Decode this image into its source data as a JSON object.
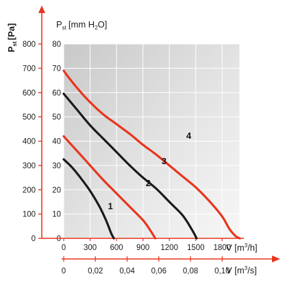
{
  "chart_data": {
    "type": "line",
    "title": "",
    "y_axis_left": {
      "label_main": "P",
      "label_sub": "st",
      "label_unit": "[Pa]",
      "ticks": [
        0,
        100,
        200,
        300,
        400,
        500,
        600,
        700,
        800
      ],
      "range": [
        0,
        800
      ]
    },
    "y_axis_inner": {
      "label_main": "P",
      "label_sub": "st",
      "label_unit": "[mm H",
      "label_unit_sub": "2",
      "label_unit_end": "O]",
      "ticks": [
        0,
        10,
        20,
        30,
        40,
        50,
        60,
        70,
        80
      ],
      "range": [
        0,
        80
      ]
    },
    "x_axis_primary": {
      "label": "V [m",
      "label_sup": "3",
      "label_end": "/h]",
      "ticks": [
        0,
        300,
        600,
        900,
        1200,
        1500,
        1800
      ],
      "range": [
        0,
        2000
      ]
    },
    "x_axis_secondary": {
      "label": "V [m",
      "label_sup": "3",
      "label_end": "/s]",
      "ticks": [
        "0",
        "0,02",
        "0,04",
        "0,06",
        "0,08",
        "0,10"
      ],
      "tick_values": [
        0,
        0.02,
        0.04,
        0.06,
        0.08,
        0.1
      ],
      "range": [
        0,
        0.1111
      ]
    },
    "grid": true,
    "series": [
      {
        "name": "1",
        "color": "#1a1a1a",
        "x": [
          0,
          100,
          200,
          300,
          400,
          480,
          540,
          570
        ],
        "y": [
          325,
          290,
          245,
          195,
          135,
          75,
          20,
          0
        ]
      },
      {
        "name": "2",
        "color": "#e8351e",
        "x": [
          0,
          150,
          300,
          450,
          600,
          750,
          900,
          980,
          1040
        ],
        "y": [
          420,
          360,
          300,
          240,
          185,
          130,
          75,
          35,
          0
        ]
      },
      {
        "name": "3",
        "color": "#1a1a1a",
        "x": [
          0,
          150,
          300,
          450,
          600,
          750,
          900,
          1050,
          1200,
          1350,
          1450,
          1510
        ],
        "y": [
          595,
          530,
          465,
          410,
          355,
          300,
          250,
          205,
          150,
          95,
          40,
          0
        ]
      },
      {
        "name": "4",
        "color": "#e8351e",
        "x": [
          0,
          40,
          150,
          300,
          450,
          600,
          750,
          900,
          1050,
          1200,
          1350,
          1500,
          1650,
          1800,
          1880,
          1950,
          2000
        ],
        "y": [
          690,
          670,
          620,
          560,
          510,
          470,
          430,
          385,
          345,
          300,
          255,
          210,
          155,
          90,
          40,
          10,
          0
        ]
      }
    ],
    "curve_labels": [
      {
        "text": "1",
        "x": 530,
        "y": 120
      },
      {
        "text": "2",
        "x": 960,
        "y": 215
      },
      {
        "text": "3",
        "x": 1140,
        "y": 305
      },
      {
        "text": "4",
        "x": 1420,
        "y": 410
      }
    ]
  }
}
